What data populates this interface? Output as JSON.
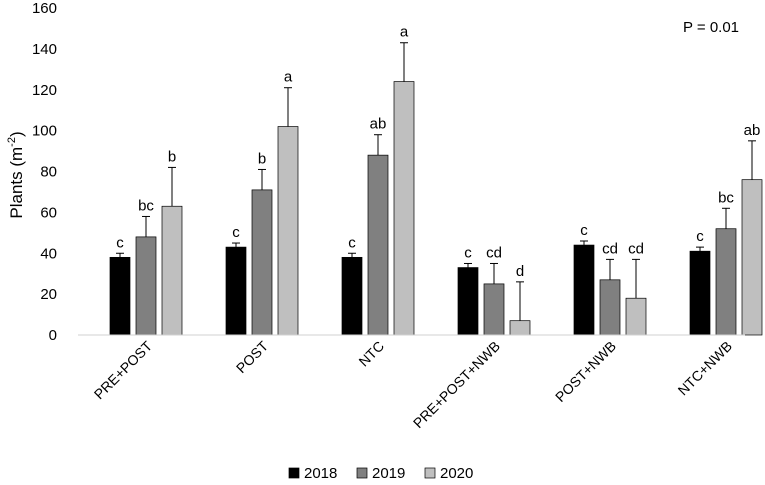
{
  "chart_data": {
    "type": "bar",
    "title": "",
    "ylabel": "Plants (m",
    "ylabel_sup": "-2",
    "ylabel_close": ")",
    "ylim": [
      0,
      160
    ],
    "yticks": [
      0,
      20,
      40,
      60,
      80,
      100,
      120,
      140,
      160
    ],
    "grid": false,
    "annotation": "P = 0.01",
    "legend_position": "bottom",
    "categories": [
      "PRE+POST",
      "POST",
      "NTC",
      "PRE+POST+NWB",
      "POST+NWB",
      "NTC+NWB"
    ],
    "series": [
      {
        "name": "2018",
        "color": "#000000",
        "values": [
          38,
          43,
          38,
          33,
          44,
          41
        ],
        "errors": [
          2,
          2,
          2,
          2,
          2,
          2
        ],
        "letters": [
          "c",
          "c",
          "c",
          "c",
          "c",
          "c"
        ]
      },
      {
        "name": "2019",
        "color": "#808080",
        "values": [
          48,
          71,
          88,
          25,
          27,
          52
        ],
        "errors": [
          10,
          10,
          10,
          10,
          10,
          10
        ],
        "letters": [
          "bc",
          "b",
          "ab",
          "cd",
          "cd",
          "bc"
        ]
      },
      {
        "name": "2020",
        "color": "#bfbfbf",
        "values": [
          63,
          102,
          124,
          7,
          18,
          76
        ],
        "errors": [
          19,
          19,
          19,
          19,
          19,
          19
        ],
        "letters": [
          "b",
          "a",
          "a",
          "d",
          "cd",
          "ab"
        ]
      }
    ]
  }
}
